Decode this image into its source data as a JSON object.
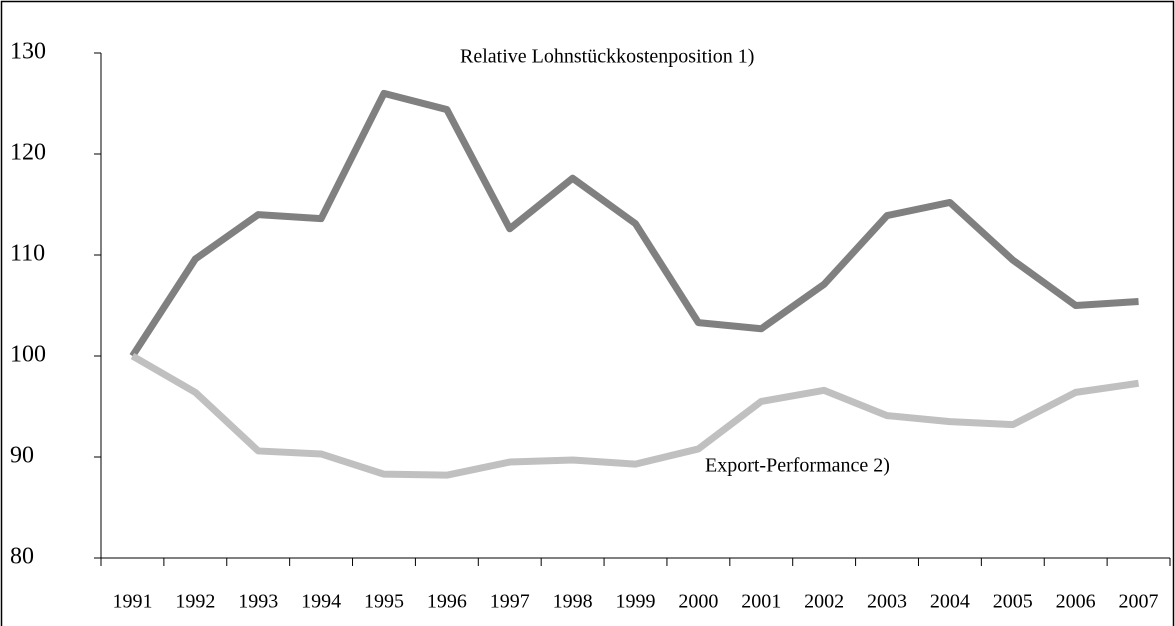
{
  "chart_data": {
    "type": "line",
    "categories": [
      "1991",
      "1992",
      "1993",
      "1994",
      "1995",
      "1996",
      "1997",
      "1998",
      "1999",
      "2000",
      "2001",
      "2002",
      "2003",
      "2004",
      "2005",
      "2006",
      "2007"
    ],
    "series": [
      {
        "name": "Relative Lohnstückkostenposition 1)",
        "color": "#808080",
        "values": [
          100,
          109.6,
          114,
          113.6,
          126,
          124.4,
          112.6,
          117.6,
          113.1,
          103.3,
          102.7,
          107.1,
          113.9,
          115.2,
          109.5,
          105,
          105.4
        ]
      },
      {
        "name": "Export-Performance 2)",
        "color": "#c0c0c0",
        "values": [
          100,
          96.4,
          90.6,
          90.3,
          88.3,
          88.2,
          89.5,
          89.7,
          89.3,
          90.8,
          95.5,
          96.6,
          94.1,
          93.5,
          93.2,
          96.4,
          97.3
        ]
      }
    ],
    "ylim": [
      80,
      130
    ],
    "yticks": [
      80,
      90,
      100,
      110,
      120,
      130
    ],
    "grid": false
  }
}
